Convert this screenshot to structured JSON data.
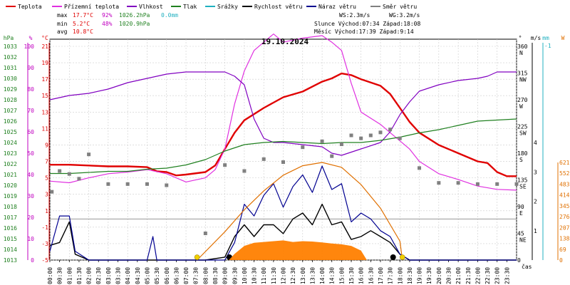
{
  "legend": [
    {
      "label": "Teplota",
      "color": "#e00000"
    },
    {
      "label": "Přízemní teplota",
      "color": "#e030e0"
    },
    {
      "label": "Vlhkost",
      "color": "#8000c0"
    },
    {
      "label": "Tlak",
      "color": "#208020"
    },
    {
      "label": "Srážky",
      "color": "#20b0c0"
    },
    {
      "label": "Rychlost větru",
      "color": "#000000"
    },
    {
      "label": "Náraz větru",
      "color": "#000090"
    },
    {
      "label": "Směr větru",
      "color": "#808080"
    }
  ],
  "stats": {
    "max_label": "max",
    "max_temp": "17.7°C",
    "max_hum": "92%",
    "max_press": "1026.2hPa",
    "max_rain": "0.0mm",
    "min_label": "min",
    "min_temp": "5.2°C",
    "min_hum": "48%",
    "min_press": "1020.9hPa",
    "avg_label": "avg",
    "avg_temp": "10.8°C"
  },
  "wind": {
    "ws": "WS:2.3m/s",
    "wg": "WG:3.2m/s"
  },
  "sun": {
    "line": "Slunce Východ:07:34  Západ:18:08"
  },
  "moon": {
    "line": "Měsíc  Východ:17:39  Západ:9:14"
  },
  "date": "19.10.2024",
  "chart_data": {
    "type": "line",
    "title": "19.10.2024",
    "x_unit": "hour",
    "x_ticks": [
      "00:00",
      "00:30",
      "01:00",
      "01:30",
      "02:00",
      "02:30",
      "03:00",
      "03:30",
      "04:00",
      "04:30",
      "05:00",
      "05:30",
      "06:00",
      "06:30",
      "07:00",
      "07:30",
      "08:00",
      "08:30",
      "09:00",
      "09:30",
      "10:00",
      "10:30",
      "11:00",
      "11:30",
      "12:00",
      "12:30",
      "13:00",
      "13:30",
      "14:00",
      "14:30",
      "15:00",
      "15:30",
      "16:00",
      "16:30",
      "17:00",
      "17:30",
      "18:00",
      "18:30",
      "19:00",
      "19:30",
      "20:00",
      "20:30",
      "21:00",
      "21:30",
      "22:00",
      "22:30",
      "23:00",
      "23:30"
    ],
    "x_axis_label": "čas",
    "axes": {
      "hpa": {
        "title": "hPa",
        "ticks": [
          1013,
          1014,
          1015,
          1016,
          1017,
          1018,
          1019,
          1020,
          1021,
          1022,
          1023,
          1024,
          1025,
          1026,
          1027,
          1028,
          1029,
          1030,
          1031,
          1032,
          1033
        ],
        "color": "#208020"
      },
      "pct": {
        "title": "%",
        "ticks": [
          0,
          10,
          20,
          30,
          40,
          50,
          60,
          70,
          80,
          90,
          100
        ],
        "color": "#c000c0"
      },
      "temp": {
        "title": "°C",
        "ticks": [
          -5,
          -3,
          -1,
          1,
          3,
          5,
          7,
          9,
          11,
          13,
          15,
          17,
          19,
          21
        ],
        "color": "#e00000"
      },
      "dir": {
        "title": "°",
        "ticks": [
          {
            "v": 0,
            "l": "0"
          },
          {
            "v": 45,
            "l": "45 NE"
          },
          {
            "v": 90,
            "l": "90 E"
          },
          {
            "v": 135,
            "l": "135 SE"
          },
          {
            "v": 180,
            "l": "180 S"
          },
          {
            "v": 225,
            "l": "225 SW"
          },
          {
            "v": 270,
            "l": "270 W"
          },
          {
            "v": 315,
            "l": "315 NW"
          },
          {
            "v": 360,
            "l": "360 N"
          }
        ]
      },
      "ms": {
        "title": "m/s",
        "ticks": [
          1,
          2,
          3,
          4
        ],
        "color": "#000000"
      },
      "mm": {
        "title": "mm",
        "ticks": [
          -1
        ],
        "color": "#20b0c0"
      },
      "wm2": {
        "title": "W",
        "ticks": [
          0,
          69,
          138,
          207,
          276,
          345,
          414,
          483,
          552,
          621
        ],
        "color": "#e07000"
      }
    },
    "series": [
      {
        "name": "Teplota",
        "axis": "temp",
        "color": "#e00000",
        "points": [
          [
            0,
            6.6
          ],
          [
            1,
            6.6
          ],
          [
            2,
            6.5
          ],
          [
            3,
            6.4
          ],
          [
            4,
            6.4
          ],
          [
            5,
            6.3
          ],
          [
            5.5,
            5.8
          ],
          [
            6,
            5.7
          ],
          [
            6.5,
            5.3
          ],
          [
            7,
            5.4
          ],
          [
            8,
            5.7
          ],
          [
            8.5,
            6.5
          ],
          [
            9,
            8.5
          ],
          [
            9.5,
            10.5
          ],
          [
            10,
            12
          ],
          [
            11,
            13.5
          ],
          [
            12,
            14.8
          ],
          [
            13,
            15.5
          ],
          [
            14,
            16.7
          ],
          [
            14.5,
            17.1
          ],
          [
            15,
            17.7
          ],
          [
            15.5,
            17.5
          ],
          [
            16,
            17
          ],
          [
            17,
            16.2
          ],
          [
            17.5,
            15.2
          ],
          [
            18,
            13.5
          ],
          [
            18.5,
            11.8
          ],
          [
            19,
            10.5
          ],
          [
            20,
            9
          ],
          [
            21,
            8
          ],
          [
            22,
            7
          ],
          [
            22.5,
            6.8
          ],
          [
            23,
            5.7
          ],
          [
            23.5,
            5.2
          ],
          [
            24,
            5.2
          ]
        ]
      },
      {
        "name": "Přízemní teplota",
        "axis": "temp",
        "color": "#e030e0",
        "points": [
          [
            0,
            4.6
          ],
          [
            1,
            4.4
          ],
          [
            2,
            5
          ],
          [
            3,
            5.5
          ],
          [
            4,
            5.7
          ],
          [
            5,
            6
          ],
          [
            6,
            5.5
          ],
          [
            7,
            4.5
          ],
          [
            8,
            5
          ],
          [
            8.5,
            6
          ],
          [
            9,
            8.5
          ],
          [
            9.5,
            14
          ],
          [
            10,
            18
          ],
          [
            10.5,
            20.5
          ],
          [
            11,
            21.5
          ],
          [
            11.5,
            22.5
          ],
          [
            12,
            21.5
          ],
          [
            13,
            22
          ],
          [
            14,
            22.3
          ],
          [
            14.5,
            21.5
          ],
          [
            15,
            20.5
          ],
          [
            15.5,
            16.5
          ],
          [
            16,
            13
          ],
          [
            17,
            11.5
          ],
          [
            17.5,
            10.5
          ],
          [
            18,
            9.5
          ],
          [
            18.5,
            8.5
          ],
          [
            19,
            7
          ],
          [
            20,
            5.5
          ],
          [
            21,
            4.8
          ],
          [
            22,
            4
          ],
          [
            23,
            3.6
          ],
          [
            24,
            3.5
          ]
        ]
      },
      {
        "name": "Vlhkost",
        "axis": "pct",
        "color": "#8000c0",
        "points": [
          [
            0,
            75
          ],
          [
            1,
            77
          ],
          [
            2,
            78
          ],
          [
            3,
            80
          ],
          [
            4,
            83
          ],
          [
            5,
            85
          ],
          [
            6,
            87
          ],
          [
            7,
            88
          ],
          [
            8,
            88
          ],
          [
            9,
            88
          ],
          [
            9.5,
            86
          ],
          [
            10,
            82
          ],
          [
            10.5,
            66
          ],
          [
            11,
            57
          ],
          [
            11.5,
            55
          ],
          [
            12,
            55
          ],
          [
            13,
            54
          ],
          [
            14,
            53
          ],
          [
            14.5,
            50
          ],
          [
            15,
            49
          ],
          [
            16,
            52
          ],
          [
            17,
            55
          ],
          [
            17.5,
            60
          ],
          [
            18,
            68
          ],
          [
            18.5,
            74
          ],
          [
            19,
            79
          ],
          [
            20,
            82
          ],
          [
            21,
            84
          ],
          [
            22,
            85
          ],
          [
            22.5,
            86
          ],
          [
            23,
            88
          ],
          [
            24,
            88
          ]
        ]
      },
      {
        "name": "Tlak",
        "axis": "hpa",
        "color": "#208020",
        "points": [
          [
            0,
            1021.1
          ],
          [
            1,
            1021.1
          ],
          [
            2,
            1021.2
          ],
          [
            3,
            1021.3
          ],
          [
            4,
            1021.3
          ],
          [
            5,
            1021.5
          ],
          [
            6,
            1021.6
          ],
          [
            7,
            1021.9
          ],
          [
            8,
            1022.4
          ],
          [
            9,
            1023.2
          ],
          [
            10,
            1023.8
          ],
          [
            11,
            1024.0
          ],
          [
            12,
            1024.1
          ],
          [
            13,
            1024.0
          ],
          [
            14,
            1023.9
          ],
          [
            15,
            1024.0
          ],
          [
            16,
            1024.0
          ],
          [
            17,
            1024.2
          ],
          [
            18,
            1024.5
          ],
          [
            19,
            1024.9
          ],
          [
            20,
            1025.2
          ],
          [
            21,
            1025.6
          ],
          [
            22,
            1026.0
          ],
          [
            23,
            1026.1
          ],
          [
            24,
            1026.2
          ]
        ]
      },
      {
        "name": "Rychlost větru",
        "axis": "ms",
        "color": "#000000",
        "points": [
          [
            0,
            0.5
          ],
          [
            0.5,
            0.6
          ],
          [
            1,
            1.3
          ],
          [
            1.3,
            0.2
          ],
          [
            2,
            0
          ],
          [
            3,
            0
          ],
          [
            4,
            0
          ],
          [
            5,
            0
          ],
          [
            6,
            0
          ],
          [
            7,
            0
          ],
          [
            8,
            0
          ],
          [
            9,
            0.1
          ],
          [
            9.5,
            0.8
          ],
          [
            10,
            1.2
          ],
          [
            10.5,
            0.8
          ],
          [
            11,
            1.2
          ],
          [
            11.5,
            1.2
          ],
          [
            12,
            0.9
          ],
          [
            12.5,
            1.4
          ],
          [
            13,
            1.6
          ],
          [
            13.5,
            1.2
          ],
          [
            14,
            1.9
          ],
          [
            14.5,
            1.2
          ],
          [
            15,
            1.3
          ],
          [
            15.5,
            0.7
          ],
          [
            16,
            0.8
          ],
          [
            16.5,
            1.0
          ],
          [
            17,
            0.8
          ],
          [
            17.5,
            0.6
          ],
          [
            18,
            0.2
          ],
          [
            18.5,
            0
          ],
          [
            19,
            0
          ],
          [
            24,
            0
          ]
        ]
      },
      {
        "name": "Náraz větru",
        "axis": "ms",
        "color": "#000090",
        "points": [
          [
            0,
            0.3
          ],
          [
            0.5,
            1.5
          ],
          [
            1,
            1.5
          ],
          [
            1.3,
            0.3
          ],
          [
            2,
            0
          ],
          [
            5,
            0
          ],
          [
            5.3,
            0.8
          ],
          [
            5.5,
            0
          ],
          [
            9,
            0
          ],
          [
            9.5,
            0.6
          ],
          [
            10,
            1.9
          ],
          [
            10.5,
            1.5
          ],
          [
            11,
            2.2
          ],
          [
            11.5,
            2.6
          ],
          [
            12,
            1.8
          ],
          [
            12.5,
            2.5
          ],
          [
            13,
            2.9
          ],
          [
            13.5,
            2.3
          ],
          [
            14,
            3.2
          ],
          [
            14.5,
            2.4
          ],
          [
            15,
            2.6
          ],
          [
            15.5,
            1.3
          ],
          [
            16,
            1.6
          ],
          [
            16.5,
            1.4
          ],
          [
            17,
            1.0
          ],
          [
            17.5,
            0.8
          ],
          [
            18,
            0.2
          ],
          [
            18.5,
            0
          ],
          [
            24,
            0
          ]
        ]
      },
      {
        "name": "Směr větru",
        "axis": "dir",
        "color": "#808080",
        "kind": "points",
        "points": [
          [
            0.1,
            115
          ],
          [
            0.5,
            150
          ],
          [
            1,
            145
          ],
          [
            1.5,
            137
          ],
          [
            2,
            178
          ],
          [
            3,
            128
          ],
          [
            4,
            128
          ],
          [
            5,
            128
          ],
          [
            6,
            126
          ],
          [
            8,
            45
          ],
          [
            9,
            160
          ],
          [
            10,
            150
          ],
          [
            11,
            170
          ],
          [
            12,
            165
          ],
          [
            13,
            190
          ],
          [
            14,
            200
          ],
          [
            14.5,
            175
          ],
          [
            15,
            195
          ],
          [
            15.5,
            210
          ],
          [
            16,
            205
          ],
          [
            16.5,
            210
          ],
          [
            17,
            215
          ],
          [
            17.5,
            220
          ],
          [
            18,
            205
          ],
          [
            19,
            155
          ],
          [
            20,
            130
          ],
          [
            21,
            130
          ],
          [
            22,
            128
          ],
          [
            23,
            128
          ],
          [
            24,
            128
          ]
        ]
      },
      {
        "name": "Slunce",
        "axis": "wm2",
        "color": "#e07000",
        "kind": "sun",
        "points": [
          [
            7.57,
            0
          ],
          [
            9,
            180
          ],
          [
            10,
            320
          ],
          [
            11,
            440
          ],
          [
            12,
            540
          ],
          [
            13,
            600
          ],
          [
            14,
            621
          ],
          [
            15,
            590
          ],
          [
            16,
            480
          ],
          [
            17,
            330
          ],
          [
            18,
            120
          ],
          [
            18.13,
            0
          ]
        ]
      },
      {
        "name": "Záření",
        "axis": "wm2",
        "color": "#ff8000",
        "kind": "fill",
        "points": [
          [
            9.2,
            0
          ],
          [
            9.5,
            40
          ],
          [
            10,
            90
          ],
          [
            10.5,
            110
          ],
          [
            11,
            115
          ],
          [
            11.5,
            120
          ],
          [
            12,
            125
          ],
          [
            12.5,
            115
          ],
          [
            13,
            120
          ],
          [
            13.5,
            118
          ],
          [
            14,
            112
          ],
          [
            14.5,
            105
          ],
          [
            15,
            100
          ],
          [
            15.5,
            90
          ],
          [
            16,
            60
          ],
          [
            16.3,
            0
          ]
        ]
      }
    ]
  }
}
